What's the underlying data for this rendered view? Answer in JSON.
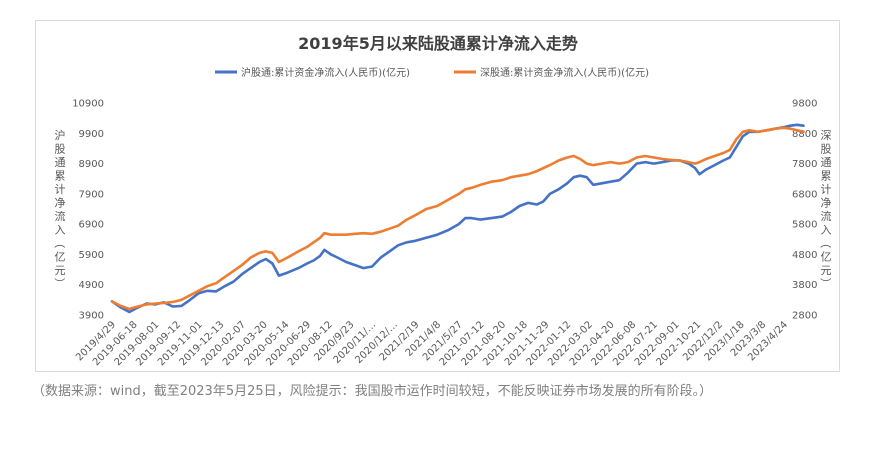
{
  "caption": "（数据来源：wind，截至2023年5月25日，风险提示：我国股市运作时间较短，不能反映证券市场发展的所有阶段。）",
  "chart_data": {
    "type": "line",
    "title": "2019年5月以来陆股通累计净流入走势",
    "legend_position": "top",
    "grid": false,
    "x_ticks": [
      "2019/4/29",
      "2019-06-18",
      "2019-08-01",
      "2019-09-12",
      "2019-11-01",
      "2019-12-13",
      "2020-02-07",
      "2020-03-20",
      "2020-05-14",
      "2020-06-29",
      "2020-08-12",
      "2020/9/23",
      "2020/11/…",
      "2020/12/…",
      "2021/2/19",
      "2021/4/8",
      "2021/5/27",
      "2021-07-12",
      "2021-08-20",
      "2021-10-18",
      "2021-11-29",
      "2022-01-12",
      "2022-03-02",
      "2022-04-20",
      "2022-06-08",
      "2022-07-21",
      "2022-09-01",
      "2022-10-21",
      "2022/12/2",
      "2023/1/18",
      "2023/3/8",
      "2023/4/24"
    ],
    "y_left": {
      "label": "沪股通累计净流入（亿元）",
      "ticks": [
        "3900",
        "4900",
        "5900",
        "6900",
        "7900",
        "8900",
        "9900",
        "10900"
      ],
      "range": [
        3900,
        10900
      ]
    },
    "y_right": {
      "label": "深股通累计净流入（亿元）",
      "ticks": [
        "2800",
        "3800",
        "4800",
        "5800",
        "6800",
        "7800",
        "8800",
        "9800"
      ],
      "range": [
        2800,
        9800
      ]
    },
    "series": [
      {
        "name": "沪股通:累计资金净流入(人民币)(亿元)",
        "axis": "left",
        "color": "#4472c4",
        "values": [
          [
            0,
            4350
          ],
          [
            0.4,
            4150
          ],
          [
            0.8,
            4000
          ],
          [
            1.2,
            4150
          ],
          [
            1.6,
            4280
          ],
          [
            2,
            4250
          ],
          [
            2.4,
            4320
          ],
          [
            2.8,
            4180
          ],
          [
            3.2,
            4200
          ],
          [
            3.6,
            4400
          ],
          [
            4,
            4620
          ],
          [
            4.4,
            4700
          ],
          [
            4.8,
            4680
          ],
          [
            5.2,
            4850
          ],
          [
            5.6,
            5000
          ],
          [
            6,
            5250
          ],
          [
            6.4,
            5450
          ],
          [
            6.8,
            5650
          ],
          [
            7.1,
            5750
          ],
          [
            7.4,
            5600
          ],
          [
            7.7,
            5200
          ],
          [
            8.1,
            5300
          ],
          [
            8.6,
            5450
          ],
          [
            9,
            5600
          ],
          [
            9.3,
            5700
          ],
          [
            9.6,
            5850
          ],
          [
            9.8,
            6050
          ],
          [
            10.1,
            5900
          ],
          [
            10.4,
            5800
          ],
          [
            10.8,
            5650
          ],
          [
            11.2,
            5550
          ],
          [
            11.6,
            5450
          ],
          [
            12,
            5500
          ],
          [
            12.4,
            5800
          ],
          [
            12.8,
            6000
          ],
          [
            13.2,
            6200
          ],
          [
            13.6,
            6300
          ],
          [
            14,
            6350
          ],
          [
            14.5,
            6450
          ],
          [
            15,
            6550
          ],
          [
            15.5,
            6700
          ],
          [
            16,
            6900
          ],
          [
            16.3,
            7100
          ],
          [
            16.6,
            7100
          ],
          [
            17,
            7050
          ],
          [
            17.5,
            7100
          ],
          [
            18,
            7150
          ],
          [
            18.4,
            7300
          ],
          [
            18.8,
            7500
          ],
          [
            19.2,
            7600
          ],
          [
            19.6,
            7550
          ],
          [
            19.9,
            7650
          ],
          [
            20.2,
            7900
          ],
          [
            20.6,
            8050
          ],
          [
            21,
            8250
          ],
          [
            21.3,
            8450
          ],
          [
            21.6,
            8500
          ],
          [
            21.9,
            8450
          ],
          [
            22.2,
            8200
          ],
          [
            22.6,
            8250
          ],
          [
            23,
            8300
          ],
          [
            23.4,
            8350
          ],
          [
            23.8,
            8600
          ],
          [
            24.2,
            8900
          ],
          [
            24.6,
            8950
          ],
          [
            25,
            8900
          ],
          [
            25.4,
            8950
          ],
          [
            25.8,
            9000
          ],
          [
            26.2,
            9000
          ],
          [
            26.6,
            8900
          ],
          [
            26.9,
            8750
          ],
          [
            27.1,
            8550
          ],
          [
            27.4,
            8700
          ],
          [
            27.8,
            8850
          ],
          [
            28.2,
            9000
          ],
          [
            28.5,
            9100
          ],
          [
            28.8,
            9450
          ],
          [
            29.1,
            9800
          ],
          [
            29.4,
            9950
          ],
          [
            29.8,
            9950
          ],
          [
            30.2,
            10000
          ],
          [
            30.6,
            10050
          ],
          [
            31,
            10100
          ],
          [
            31.3,
            10150
          ],
          [
            31.6,
            10180
          ],
          [
            31.9,
            10150
          ]
        ]
      },
      {
        "name": "深股通:累计资金净流入(人民币)(亿元)",
        "axis": "right",
        "color": "#ed7d31",
        "values": [
          [
            0,
            3250
          ],
          [
            0.4,
            3100
          ],
          [
            0.8,
            3000
          ],
          [
            1.2,
            3080
          ],
          [
            1.6,
            3150
          ],
          [
            2,
            3180
          ],
          [
            2.4,
            3200
          ],
          [
            2.8,
            3230
          ],
          [
            3.2,
            3300
          ],
          [
            3.6,
            3450
          ],
          [
            4,
            3600
          ],
          [
            4.4,
            3750
          ],
          [
            4.8,
            3850
          ],
          [
            5.2,
            4050
          ],
          [
            5.6,
            4250
          ],
          [
            6,
            4450
          ],
          [
            6.4,
            4700
          ],
          [
            6.8,
            4850
          ],
          [
            7.1,
            4900
          ],
          [
            7.4,
            4850
          ],
          [
            7.7,
            4550
          ],
          [
            8.1,
            4700
          ],
          [
            8.6,
            4900
          ],
          [
            9,
            5050
          ],
          [
            9.3,
            5200
          ],
          [
            9.6,
            5350
          ],
          [
            9.8,
            5500
          ],
          [
            10.1,
            5450
          ],
          [
            10.4,
            5450
          ],
          [
            10.8,
            5450
          ],
          [
            11.2,
            5480
          ],
          [
            11.6,
            5500
          ],
          [
            12,
            5480
          ],
          [
            12.4,
            5550
          ],
          [
            12.8,
            5650
          ],
          [
            13.2,
            5750
          ],
          [
            13.6,
            5950
          ],
          [
            14,
            6100
          ],
          [
            14.5,
            6300
          ],
          [
            15,
            6400
          ],
          [
            15.5,
            6600
          ],
          [
            16,
            6800
          ],
          [
            16.3,
            6950
          ],
          [
            16.6,
            7000
          ],
          [
            17,
            7100
          ],
          [
            17.5,
            7200
          ],
          [
            18,
            7250
          ],
          [
            18.4,
            7350
          ],
          [
            18.8,
            7400
          ],
          [
            19.2,
            7450
          ],
          [
            19.6,
            7550
          ],
          [
            19.9,
            7650
          ],
          [
            20.2,
            7750
          ],
          [
            20.6,
            7900
          ],
          [
            21,
            8000
          ],
          [
            21.3,
            8050
          ],
          [
            21.6,
            7950
          ],
          [
            21.9,
            7800
          ],
          [
            22.2,
            7750
          ],
          [
            22.6,
            7800
          ],
          [
            23,
            7850
          ],
          [
            23.4,
            7800
          ],
          [
            23.8,
            7850
          ],
          [
            24.2,
            8000
          ],
          [
            24.6,
            8050
          ],
          [
            25,
            8000
          ],
          [
            25.4,
            7950
          ],
          [
            25.8,
            7920
          ],
          [
            26.2,
            7900
          ],
          [
            26.6,
            7850
          ],
          [
            26.9,
            7800
          ],
          [
            27.1,
            7850
          ],
          [
            27.4,
            7950
          ],
          [
            27.8,
            8050
          ],
          [
            28.2,
            8150
          ],
          [
            28.5,
            8250
          ],
          [
            28.8,
            8600
          ],
          [
            29.1,
            8850
          ],
          [
            29.4,
            8900
          ],
          [
            29.8,
            8850
          ],
          [
            30.2,
            8900
          ],
          [
            30.6,
            8950
          ],
          [
            31,
            8980
          ],
          [
            31.3,
            8950
          ],
          [
            31.6,
            8900
          ],
          [
            31.9,
            8850
          ]
        ]
      }
    ]
  }
}
